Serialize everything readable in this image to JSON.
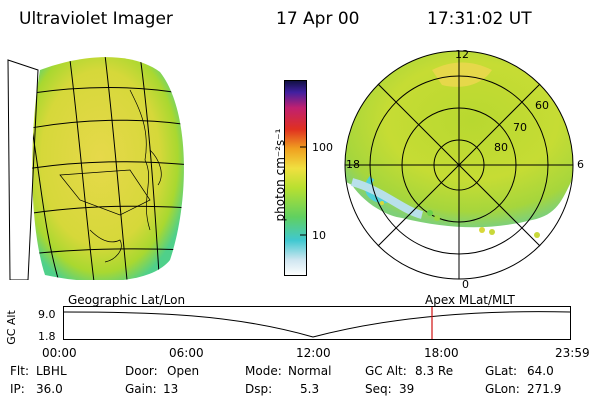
{
  "header": {
    "title": "Ultraviolet Imager",
    "date": "17 Apr 00",
    "time": "17:31:02 UT"
  },
  "colorbar": {
    "unit_label": "photon cm⁻²s⁻¹",
    "ticks": [
      "100",
      "10"
    ]
  },
  "polar_plot": {
    "mlt_labels": [
      "12",
      "18",
      "6",
      "0"
    ],
    "lat_labels": [
      "60",
      "70",
      "80"
    ]
  },
  "timeline": {
    "left_label": "Geographic Lat/Lon",
    "right_label": "Apex MLat/MLT",
    "axis_label": "GC Alt",
    "y_ticks": [
      "9.0",
      "1.8"
    ],
    "x_ticks": [
      "00:00",
      "06:00",
      "12:00",
      "18:00",
      "23:59"
    ],
    "marker_color": "#d01010"
  },
  "status": {
    "row1": [
      {
        "label": "Flt:",
        "value": "LBHL"
      },
      {
        "label": "Door:",
        "value": "Open"
      },
      {
        "label": "Mode:",
        "value": "Normal"
      },
      {
        "label": "GC Alt:",
        "value": "8.3 Re"
      },
      {
        "label": "GLat:",
        "value": "64.0"
      }
    ],
    "row2": [
      {
        "label": "IP:",
        "value": "36.0"
      },
      {
        "label": "Gain:",
        "value": "13"
      },
      {
        "label": "Dsp:",
        "value": "5.3"
      },
      {
        "label": "Seq:",
        "value": "39"
      },
      {
        "label": "GLon:",
        "value": "271.9"
      }
    ]
  }
}
